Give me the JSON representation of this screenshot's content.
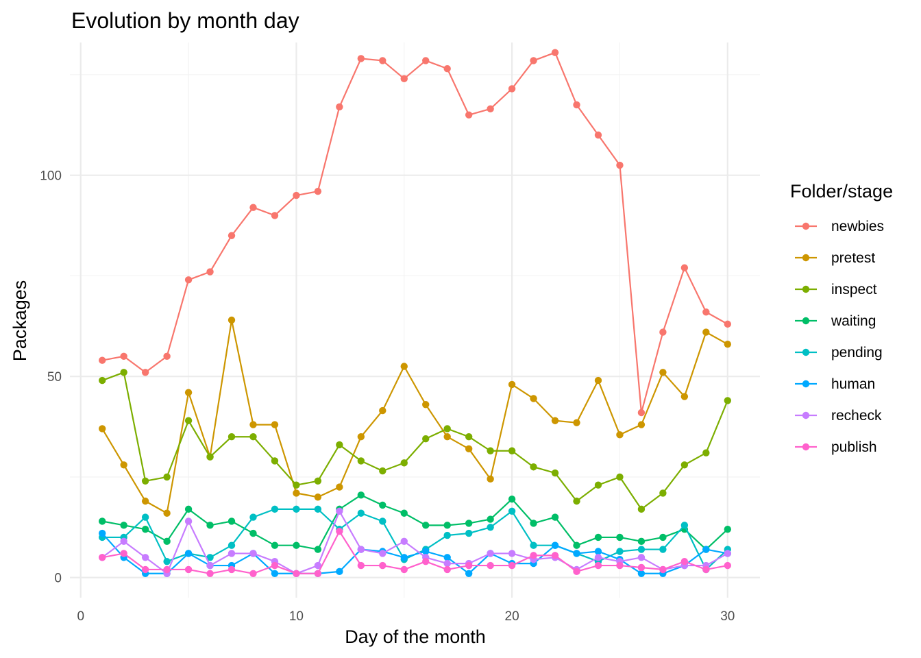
{
  "chart_data": {
    "type": "line",
    "title": "Evolution by month day",
    "xlabel": "Day of the month",
    "ylabel": "Packages",
    "xlim": [
      -0.5,
      31.5
    ],
    "ylim": [
      -5,
      133
    ],
    "x_ticks": [
      0,
      10,
      20,
      30
    ],
    "y_ticks": [
      0,
      50,
      100
    ],
    "grid": true,
    "legend": {
      "title": "Folder/stage",
      "position": "right"
    },
    "x": [
      1,
      2,
      3,
      4,
      5,
      6,
      7,
      8,
      9,
      10,
      11,
      12,
      13,
      14,
      15,
      16,
      17,
      18,
      19,
      20,
      21,
      22,
      23,
      24,
      25,
      26,
      27,
      28,
      29,
      30
    ],
    "series": [
      {
        "name": "newbies",
        "color": "#F8766D",
        "values": [
          54,
          55,
          51,
          55,
          74,
          76,
          85,
          92,
          90,
          95,
          96,
          117,
          129,
          128.5,
          124,
          128.5,
          126.5,
          115,
          116.5,
          121.5,
          128.5,
          130.5,
          117.5,
          110,
          102.5,
          41,
          61,
          77,
          66,
          63
        ]
      },
      {
        "name": "pretest",
        "color": "#CD9600",
        "values": [
          37,
          28,
          19,
          16,
          46,
          30,
          64,
          38,
          38,
          21,
          20,
          22.5,
          35,
          41.5,
          52.5,
          43,
          35,
          32,
          24.5,
          48,
          44.5,
          39,
          38.5,
          49,
          35.5,
          38,
          51,
          45,
          61,
          58
        ]
      },
      {
        "name": "inspect",
        "color": "#7CAE00",
        "values": [
          49,
          51,
          24,
          25,
          39,
          30,
          35,
          35,
          29,
          23,
          24,
          33,
          29,
          26.5,
          28.5,
          34.5,
          37,
          35,
          31.5,
          31.5,
          27.5,
          26,
          19,
          23,
          25,
          17,
          21,
          28,
          31,
          44
        ]
      },
      {
        "name": "waiting",
        "color": "#00BE67",
        "values": [
          14,
          13,
          12,
          9,
          17,
          13,
          14,
          11,
          8,
          8,
          7,
          17,
          20.5,
          18,
          16,
          13,
          13,
          13.5,
          14.5,
          19.5,
          13.5,
          15,
          8,
          10,
          10,
          9,
          10,
          12,
          7,
          12
        ]
      },
      {
        "name": "pending",
        "color": "#00BFC4",
        "values": [
          10,
          10,
          15,
          4,
          6,
          5,
          8,
          15,
          17,
          17,
          17,
          12,
          16,
          14,
          4.5,
          7,
          10.5,
          11,
          12.5,
          16.5,
          8,
          8,
          6,
          4,
          6.5,
          7,
          7,
          13,
          2,
          7
        ]
      },
      {
        "name": "human",
        "color": "#00A9FF",
        "values": [
          11,
          5,
          1,
          1,
          6,
          3,
          3,
          6,
          1,
          1,
          1,
          1.5,
          7,
          6.5,
          5,
          6.5,
          5,
          1,
          6,
          3.5,
          3.5,
          8,
          6,
          6.5,
          4.5,
          1,
          1,
          3,
          7,
          6
        ]
      },
      {
        "name": "recheck",
        "color": "#C77CFF",
        "values": [
          5,
          9,
          5,
          1,
          14,
          3,
          6,
          6,
          4,
          1,
          3,
          16.5,
          7,
          6,
          9,
          5,
          3.5,
          3.5,
          6,
          6,
          4.5,
          5,
          2,
          5,
          4,
          5,
          2,
          3,
          3,
          6
        ]
      },
      {
        "name": "publish",
        "color": "#FF61CC",
        "values": [
          5,
          6,
          2,
          2,
          2,
          1,
          2,
          1,
          3,
          1,
          1,
          11.5,
          3,
          3,
          2,
          4,
          2,
          3,
          3,
          3,
          5.5,
          5.5,
          1.5,
          3,
          3,
          2.5,
          2,
          4,
          2,
          3
        ]
      }
    ]
  }
}
